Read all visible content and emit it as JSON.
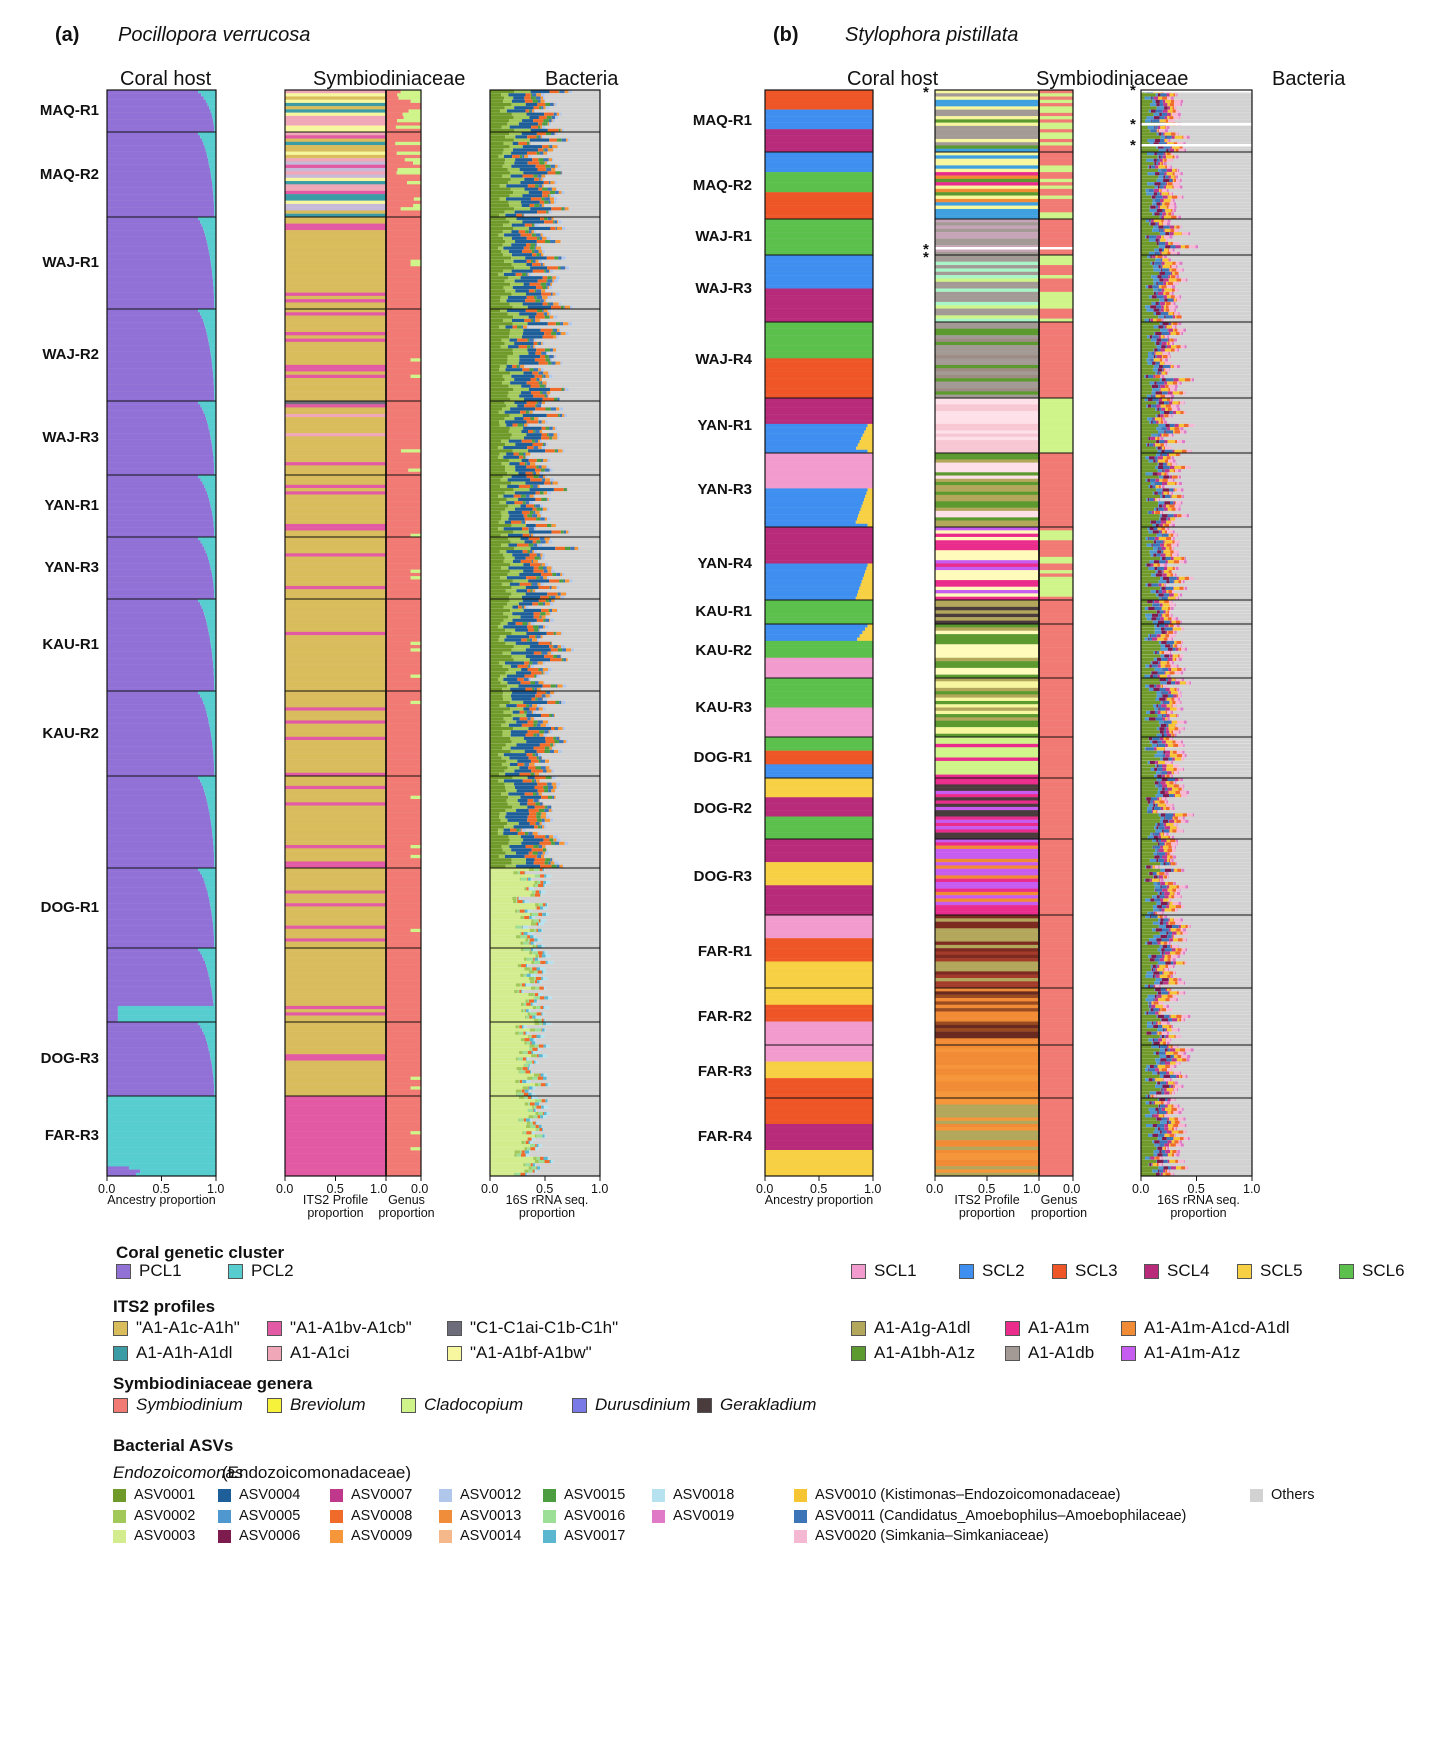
{
  "panels": {
    "a": {
      "label": "(a)",
      "species": "Pocillopora verrucosa"
    },
    "b": {
      "label": "(b)",
      "species": "Stylophora pistillata"
    }
  },
  "column_titles": {
    "host": "Coral host",
    "symb": "Symbiodiniaceae",
    "bact": "Bacteria"
  },
  "axis_labels": {
    "ancestry": "Ancestry proportion",
    "its2_1": "ITS2 Profile",
    "its2_2": "proportion",
    "genus_1": "Genus",
    "genus_2": "proportion",
    "bact_1": "16S rRNA seq.",
    "bact_2": "proportion"
  },
  "ticks": {
    "t00": "0.0",
    "t05": "0.5",
    "t10": "1.0",
    "g10": "1.0",
    "g00": "0.0"
  },
  "asterisks": [
    "*",
    "*",
    "*",
    "*",
    "*",
    "*"
  ],
  "chart_data": [
    {
      "type": "bar",
      "subtype": "horizontal stacked proportions (admixture / community composition)",
      "panel": "(a)",
      "species": "Pocillopora verrucosa",
      "row_labels": [
        "MAQ-R1",
        "MAQ-R2",
        "WAJ-R1",
        "WAJ-R2",
        "WAJ-R3",
        "YAN-R1",
        "YAN-R3",
        "KAU-R1",
        "KAU-R2",
        "DOG-R1",
        "DOG-R3",
        "FAR-R3"
      ],
      "xlim": [
        0,
        1
      ],
      "xticks": [
        "0.0",
        "0.5",
        "1.0"
      ],
      "host_clusters": [
        "PCL1",
        "PCL2"
      ],
      "dominant_host_cluster": "PCL1",
      "dominant_its2_profile": "\"A1-A1c-A1h\"",
      "dominant_genus": "Symbiodinium",
      "subplots": [
        "Coral host",
        "Symbiodiniaceae",
        "Bacteria"
      ]
    },
    {
      "type": "bar",
      "subtype": "horizontal stacked proportions (admixture / community composition)",
      "panel": "(b)",
      "species": "Stylophora pistillata",
      "row_labels": [
        "MAQ-R1",
        "MAQ-R2",
        "WAJ-R1",
        "WAJ-R3",
        "WAJ-R4",
        "YAN-R1",
        "YAN-R3",
        "YAN-R4",
        "KAU-R1",
        "KAU-R2",
        "KAU-R3",
        "DOG-R1",
        "DOG-R2",
        "DOG-R3",
        "FAR-R1",
        "FAR-R2",
        "FAR-R3",
        "FAR-R4"
      ],
      "xlim": [
        0,
        1
      ],
      "xticks": [
        "0.0",
        "0.5",
        "1.0"
      ],
      "host_clusters": [
        "SCL1",
        "SCL2",
        "SCL3",
        "SCL4",
        "SCL5",
        "SCL6"
      ],
      "dominant_genus": "Symbiodinium",
      "subplots": [
        "Coral host",
        "Symbiodiniaceae",
        "Bacteria"
      ]
    }
  ],
  "panel_a_rows": [
    {
      "label": "MAQ-R1",
      "top": 90,
      "bot": 132
    },
    {
      "label": "MAQ-R2",
      "top": 132,
      "bot": 217
    },
    {
      "label": "WAJ-R1",
      "top": 217,
      "bot": 309
    },
    {
      "label": "WAJ-R2",
      "top": 309,
      "bot": 401
    },
    {
      "label": "WAJ-R3",
      "top": 401,
      "bot": 475
    },
    {
      "label": "YAN-R1",
      "top": 475,
      "bot": 537
    },
    {
      "label": "YAN-R3",
      "top": 537,
      "bot": 599
    },
    {
      "label": "KAU-R1",
      "top": 599,
      "bot": 691
    },
    {
      "label": "KAU-R2",
      "top": 691,
      "bot": 776
    },
    {
      "label": "",
      "top": 776,
      "bot": 868
    },
    {
      "label": "DOG-R1",
      "top": 868,
      "bot": 948
    },
    {
      "label": "",
      "top": 948,
      "bot": 1022
    },
    {
      "label": "DOG-R3",
      "top": 1022,
      "bot": 1096
    },
    {
      "label": "FAR-R3",
      "top": 1096,
      "bot": 1176
    }
  ],
  "panel_b_rows": [
    {
      "label": "MAQ-R1",
      "top": 90,
      "bot": 152
    },
    {
      "label": "MAQ-R2",
      "top": 152,
      "bot": 219
    },
    {
      "label": "WAJ-R1",
      "top": 219,
      "bot": 255
    },
    {
      "label": "WAJ-R3",
      "top": 255,
      "bot": 322
    },
    {
      "label": "WAJ-R4",
      "top": 322,
      "bot": 398
    },
    {
      "label": "YAN-R1",
      "top": 398,
      "bot": 453
    },
    {
      "label": "YAN-R3",
      "top": 453,
      "bot": 527
    },
    {
      "label": "YAN-R4",
      "top": 527,
      "bot": 600
    },
    {
      "label": "KAU-R1",
      "top": 600,
      "bot": 624
    },
    {
      "label": "KAU-R2",
      "top": 624,
      "bot": 678
    },
    {
      "label": "KAU-R3",
      "top": 678,
      "bot": 737
    },
    {
      "label": "DOG-R1",
      "top": 737,
      "bot": 778
    },
    {
      "label": "DOG-R2",
      "top": 778,
      "bot": 839
    },
    {
      "label": "DOG-R3",
      "top": 839,
      "bot": 915
    },
    {
      "label": "FAR-R1",
      "top": 915,
      "bot": 988
    },
    {
      "label": "FAR-R2",
      "top": 988,
      "bot": 1045
    },
    {
      "label": "FAR-R3",
      "top": 1045,
      "bot": 1098
    },
    {
      "label": "FAR-R4",
      "top": 1098,
      "bot": 1176
    }
  ],
  "legend": {
    "coral_cluster": {
      "title": "Coral genetic cluster",
      "a_items": [
        {
          "label": "PCL1",
          "color": "#9271d6"
        },
        {
          "label": "PCL2",
          "color": "#58cdd0"
        }
      ],
      "b_items": [
        {
          "label": "SCL1",
          "color": "#f29bce"
        },
        {
          "label": "SCL2",
          "color": "#3f8ff0"
        },
        {
          "label": "SCL3",
          "color": "#ee5527"
        },
        {
          "label": "SCL4",
          "color": "#b82a7a"
        },
        {
          "label": "SCL5",
          "color": "#f8d044"
        },
        {
          "label": "SCL6",
          "color": "#5cc04d"
        }
      ]
    },
    "its2": {
      "title": "ITS2 profiles",
      "items": [
        {
          "label": "\"A1-A1c-A1h\"",
          "color": "#d9bc5c"
        },
        {
          "label": "\"A1-A1bv-A1cb\"",
          "color": "#e25aa3"
        },
        {
          "label": "\"C1-C1ai-C1b-C1h\"",
          "color": "#6d6c7a"
        },
        {
          "label": "A1-A1h-A1dl",
          "color": "#3c9ca6"
        },
        {
          "label": "A1-A1ci",
          "color": "#f0a8b8"
        },
        {
          "label": "\"A1-A1bf-A1bw\"",
          "color": "#f7f7a0"
        },
        {
          "label": "A1-A1g-A1dl",
          "color": "#b3a75c"
        },
        {
          "label": "A1-A1m",
          "color": "#ea2d8c"
        },
        {
          "label": "A1-A1m-A1cd-A1dl",
          "color": "#f28b35"
        },
        {
          "label": "A1-A1bh-A1z",
          "color": "#5c9a2f"
        },
        {
          "label": "A1-A1db",
          "color": "#a39a96"
        },
        {
          "label": "A1-A1m-A1z",
          "color": "#c75df0"
        }
      ]
    },
    "genera": {
      "title": "Symbiodiniaceae genera",
      "items": [
        {
          "label": "Symbiodinium",
          "color": "#f27a74"
        },
        {
          "label": "Breviolum",
          "color": "#f6f23c"
        },
        {
          "label": "Cladocopium",
          "color": "#cff58a"
        },
        {
          "label": "Durusdinium",
          "color": "#7a7ae6"
        },
        {
          "label": "Gerakladium",
          "color": "#4a3c3c"
        }
      ]
    },
    "asvs": {
      "title": "Bacterial  ASVs",
      "endo_italic": "Endozoicomonas",
      "endo_rest": " (Endozoicomonadaceae)",
      "items": [
        {
          "label": "ASV0001",
          "color": "#6f9a2a"
        },
        {
          "label": "ASV0002",
          "color": "#a2c85a"
        },
        {
          "label": "ASV0003",
          "color": "#d2ec8e"
        },
        {
          "label": "ASV0004",
          "color": "#1f5f99"
        },
        {
          "label": "ASV0005",
          "color": "#4f98cf"
        },
        {
          "label": "ASV0006",
          "color": "#7d1b4e"
        },
        {
          "label": "ASV0007",
          "color": "#c0388b"
        },
        {
          "label": "ASV0008",
          "color": "#f06b2a"
        },
        {
          "label": "ASV0009",
          "color": "#f5963a"
        },
        {
          "label": "ASV0012",
          "color": "#b0c6ea"
        },
        {
          "label": "ASV0013",
          "color": "#f08d3a"
        },
        {
          "label": "ASV0014",
          "color": "#f5b88b"
        },
        {
          "label": "ASV0015",
          "color": "#4c9c40"
        },
        {
          "label": "ASV0016",
          "color": "#9ddf96"
        },
        {
          "label": "ASV0017",
          "color": "#5ab7cf"
        },
        {
          "label": "ASV0018",
          "color": "#b6e2ef"
        },
        {
          "label": "ASV0019",
          "color": "#e07ac6"
        }
      ],
      "others": [
        {
          "label": "ASV0010 (Kistimonas–Endozoicomonadaceae)",
          "color": "#f5c534"
        },
        {
          "label": "ASV0011 (Candidatus_Amoebophilus–Amoebophilaceae)",
          "color": "#3c74b8"
        },
        {
          "label": "ASV0020 (Simkania–Simkaniaceae)",
          "color": "#f4b8d2"
        },
        {
          "label": "Others",
          "color": "#d2d2d2"
        }
      ]
    }
  }
}
